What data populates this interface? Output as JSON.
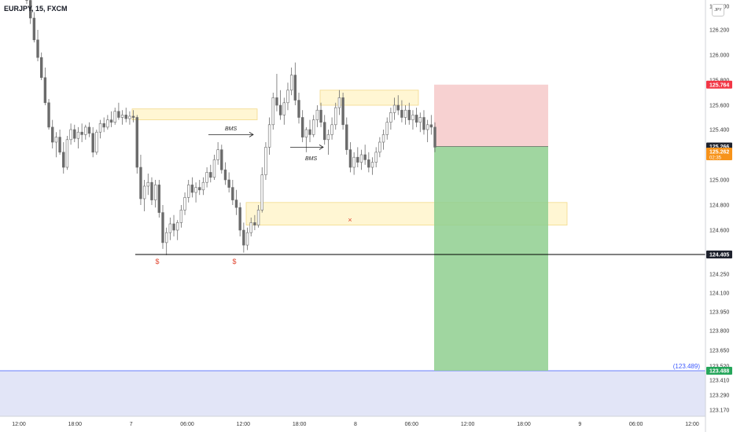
{
  "header": {
    "symbol": "EURJPY, 15, FXCM",
    "currency_badge": "JPY"
  },
  "colors": {
    "candle": "#6b6b6b",
    "zone_fill": "#fff3c4",
    "zone_border": "#f2da8b",
    "stop_fill": "#f6c9c9",
    "target_fill": "#8fcf8f",
    "lower_box_fill": "#e2e5f7",
    "level_line": "#000000",
    "sweep_marker": "#e0452f",
    "price_red": "#f23645",
    "price_orange": "#f7931a",
    "price_dark": "#1e222d",
    "target_tag": "#26a65b"
  },
  "chart_data": {
    "type": "candlestick",
    "y_axis": {
      "ticks": [
        "126.400",
        "126.200",
        "126.000",
        "125.800",
        "125.600",
        "125.400",
        "125.200",
        "125.000",
        "124.800",
        "124.600",
        "124.405",
        "124.250",
        "124.100",
        "123.950",
        "123.800",
        "123.650",
        "123.520",
        "123.410",
        "123.290",
        "123.170"
      ],
      "tick_values": [
        126.4,
        126.2,
        126.0,
        125.8,
        125.6,
        125.4,
        125.2,
        125.0,
        124.8,
        124.6,
        124.405,
        124.25,
        124.1,
        123.95,
        123.8,
        123.65,
        123.52,
        123.41,
        123.29,
        123.17
      ]
    },
    "x_axis": {
      "ticks": [
        "12:00",
        "18:00",
        "7",
        "06:00",
        "12:00",
        "18:00",
        "8",
        "06:00",
        "12:00",
        "18:00",
        "9",
        "06:00",
        "12:00"
      ],
      "tick_index": [
        0,
        24,
        48,
        72,
        96,
        120,
        144,
        168,
        192,
        216,
        240,
        264,
        288
      ]
    },
    "candles": [
      [
        126.5,
        126.55,
        126.42,
        126.45
      ],
      [
        126.45,
        126.48,
        126.25,
        126.3
      ],
      [
        126.3,
        126.35,
        126.1,
        126.12
      ],
      [
        126.12,
        126.2,
        125.95,
        125.98
      ],
      [
        125.98,
        126.02,
        125.8,
        125.82
      ],
      [
        125.82,
        125.9,
        125.6,
        125.62
      ],
      [
        125.62,
        125.65,
        125.4,
        125.42
      ],
      [
        125.42,
        125.48,
        125.25,
        125.3
      ],
      [
        125.3,
        125.38,
        125.18,
        125.34
      ],
      [
        125.34,
        125.4,
        125.2,
        125.22
      ],
      [
        125.22,
        125.3,
        125.05,
        125.1
      ],
      [
        125.1,
        125.35,
        125.08,
        125.32
      ],
      [
        125.32,
        125.45,
        125.28,
        125.4
      ],
      [
        125.4,
        125.44,
        125.3,
        125.33
      ],
      [
        125.33,
        125.42,
        125.25,
        125.38
      ],
      [
        125.38,
        125.45,
        125.3,
        125.36
      ],
      [
        125.36,
        125.44,
        125.32,
        125.42
      ],
      [
        125.42,
        125.46,
        125.34,
        125.37
      ],
      [
        125.37,
        125.42,
        125.18,
        125.22
      ],
      [
        125.22,
        125.4,
        125.2,
        125.38
      ],
      [
        125.38,
        125.48,
        125.33,
        125.45
      ],
      [
        125.45,
        125.5,
        125.38,
        125.42
      ],
      [
        125.42,
        125.52,
        125.4,
        125.48
      ],
      [
        125.48,
        125.55,
        125.42,
        125.46
      ],
      [
        125.46,
        125.58,
        125.44,
        125.55
      ],
      [
        125.55,
        125.62,
        125.48,
        125.5
      ],
      [
        125.5,
        125.56,
        125.44,
        125.52
      ],
      [
        125.52,
        125.58,
        125.46,
        125.49
      ],
      [
        125.49,
        125.55,
        125.44,
        125.51
      ],
      [
        125.51,
        125.56,
        125.46,
        125.5
      ],
      [
        125.5,
        125.52,
        125.05,
        125.1
      ],
      [
        125.1,
        125.2,
        124.8,
        124.85
      ],
      [
        124.85,
        125.0,
        124.75,
        124.95
      ],
      [
        124.95,
        125.05,
        124.88,
        124.98
      ],
      [
        124.98,
        125.02,
        124.8,
        124.84
      ],
      [
        124.84,
        125.0,
        124.78,
        124.96
      ],
      [
        124.96,
        125.0,
        124.7,
        124.74
      ],
      [
        124.74,
        124.8,
        124.45,
        124.5
      ],
      [
        124.5,
        124.62,
        124.4,
        124.58
      ],
      [
        124.58,
        124.7,
        124.52,
        124.65
      ],
      [
        124.65,
        124.72,
        124.55,
        124.6
      ],
      [
        124.6,
        124.68,
        124.52,
        124.66
      ],
      [
        124.66,
        124.8,
        124.62,
        124.76
      ],
      [
        124.76,
        124.9,
        124.72,
        124.86
      ],
      [
        124.86,
        125.0,
        124.82,
        124.96
      ],
      [
        124.96,
        125.02,
        124.86,
        124.9
      ],
      [
        124.9,
        124.98,
        124.82,
        124.94
      ],
      [
        124.94,
        125.0,
        124.88,
        124.92
      ],
      [
        124.92,
        125.02,
        124.88,
        124.98
      ],
      [
        124.98,
        125.1,
        124.94,
        125.06
      ],
      [
        125.06,
        125.12,
        124.98,
        125.02
      ],
      [
        125.02,
        125.2,
        125.0,
        125.16
      ],
      [
        125.16,
        125.3,
        125.12,
        125.24
      ],
      [
        125.24,
        125.28,
        125.05,
        125.08
      ],
      [
        125.08,
        125.14,
        124.96,
        125.0
      ],
      [
        125.0,
        125.06,
        124.9,
        124.94
      ],
      [
        124.94,
        125.0,
        124.8,
        124.84
      ],
      [
        124.84,
        124.92,
        124.72,
        124.78
      ],
      [
        124.78,
        124.82,
        124.55,
        124.6
      ],
      [
        124.6,
        124.66,
        124.42,
        124.48
      ],
      [
        124.48,
        124.62,
        124.44,
        124.58
      ],
      [
        124.58,
        124.7,
        124.55,
        124.66
      ],
      [
        124.66,
        124.72,
        124.6,
        124.64
      ],
      [
        124.64,
        124.8,
        124.62,
        124.76
      ],
      [
        124.76,
        125.1,
        124.74,
        125.04
      ],
      [
        125.04,
        125.3,
        125.0,
        125.26
      ],
      [
        125.26,
        125.5,
        125.2,
        125.44
      ],
      [
        125.44,
        125.7,
        125.4,
        125.66
      ],
      [
        125.66,
        125.85,
        125.55,
        125.6
      ],
      [
        125.6,
        125.72,
        125.48,
        125.52
      ],
      [
        125.52,
        125.66,
        125.44,
        125.62
      ],
      [
        125.62,
        125.78,
        125.56,
        125.72
      ],
      [
        125.72,
        125.9,
        125.68,
        125.84
      ],
      [
        125.84,
        125.94,
        125.6,
        125.64
      ],
      [
        125.64,
        125.7,
        125.45,
        125.5
      ],
      [
        125.5,
        125.56,
        125.3,
        125.34
      ],
      [
        125.34,
        125.42,
        125.22,
        125.4
      ],
      [
        125.4,
        125.48,
        125.3,
        125.36
      ],
      [
        125.36,
        125.52,
        125.34,
        125.48
      ],
      [
        125.48,
        125.6,
        125.42,
        125.56
      ],
      [
        125.56,
        125.62,
        125.42,
        125.46
      ],
      [
        125.46,
        125.52,
        125.28,
        125.32
      ],
      [
        125.32,
        125.4,
        125.2,
        125.36
      ],
      [
        125.36,
        125.5,
        125.32,
        125.44
      ],
      [
        125.44,
        125.62,
        125.4,
        125.58
      ],
      [
        125.58,
        125.72,
        125.52,
        125.66
      ],
      [
        125.66,
        125.7,
        125.4,
        125.44
      ],
      [
        125.44,
        125.5,
        125.2,
        125.24
      ],
      [
        125.24,
        125.3,
        125.06,
        125.1
      ],
      [
        125.1,
        125.22,
        125.04,
        125.18
      ],
      [
        125.18,
        125.26,
        125.1,
        125.14
      ],
      [
        125.14,
        125.24,
        125.08,
        125.2
      ],
      [
        125.2,
        125.28,
        125.12,
        125.16
      ],
      [
        125.16,
        125.22,
        125.06,
        125.1
      ],
      [
        125.1,
        125.18,
        125.04,
        125.14
      ],
      [
        125.14,
        125.26,
        125.1,
        125.22
      ],
      [
        125.22,
        125.34,
        125.18,
        125.3
      ],
      [
        125.3,
        125.4,
        125.24,
        125.36
      ],
      [
        125.36,
        125.5,
        125.32,
        125.46
      ],
      [
        125.46,
        125.58,
        125.4,
        125.54
      ],
      [
        125.54,
        125.66,
        125.48,
        125.6
      ],
      [
        125.6,
        125.68,
        125.52,
        125.56
      ],
      [
        125.56,
        125.64,
        125.46,
        125.5
      ],
      [
        125.5,
        125.6,
        125.44,
        125.56
      ],
      [
        125.56,
        125.62,
        125.44,
        125.48
      ],
      [
        125.48,
        125.56,
        125.4,
        125.52
      ],
      [
        125.52,
        125.58,
        125.42,
        125.46
      ],
      [
        125.46,
        125.54,
        125.38,
        125.5
      ],
      [
        125.5,
        125.56,
        125.36,
        125.4
      ],
      [
        125.4,
        125.48,
        125.3,
        125.44
      ],
      [
        125.44,
        125.52,
        125.36,
        125.42
      ],
      [
        125.42,
        125.46,
        125.22,
        125.26
      ]
    ],
    "x_start": 34,
    "x_end": 553,
    "annotations": {
      "lines": [
        {
          "type": "level",
          "price": 124.405,
          "from": "sweep-low",
          "to": "axis"
        },
        {
          "type": "bms",
          "label": "BMS",
          "price": 125.36
        },
        {
          "type": "bms",
          "label": "BMS",
          "price": 125.26
        }
      ],
      "sweep_labels": [
        "$",
        "$"
      ],
      "invalidation_marker": "×",
      "zones": [
        {
          "name": "supply-zone-1",
          "price_top": 125.57,
          "price_bottom": 125.48
        },
        {
          "name": "supply-zone-2",
          "price_top": 125.72,
          "price_bottom": 125.6
        },
        {
          "name": "demand-zone",
          "price_top": 124.82,
          "price_bottom": 124.64
        }
      ],
      "position": {
        "type": "short",
        "entry": 125.266,
        "stop": 125.764,
        "target": 123.488
      },
      "lower_box_label": "(123.489)"
    },
    "price_tags": [
      {
        "label": "125.764",
        "kind": "red"
      },
      {
        "label": "125.266",
        "kind": "dark"
      },
      {
        "label": "125.262",
        "sub": "02:35",
        "kind": "orange"
      },
      {
        "label": "124.405",
        "kind": "dark"
      },
      {
        "label": "123.488",
        "kind": "green"
      }
    ]
  }
}
